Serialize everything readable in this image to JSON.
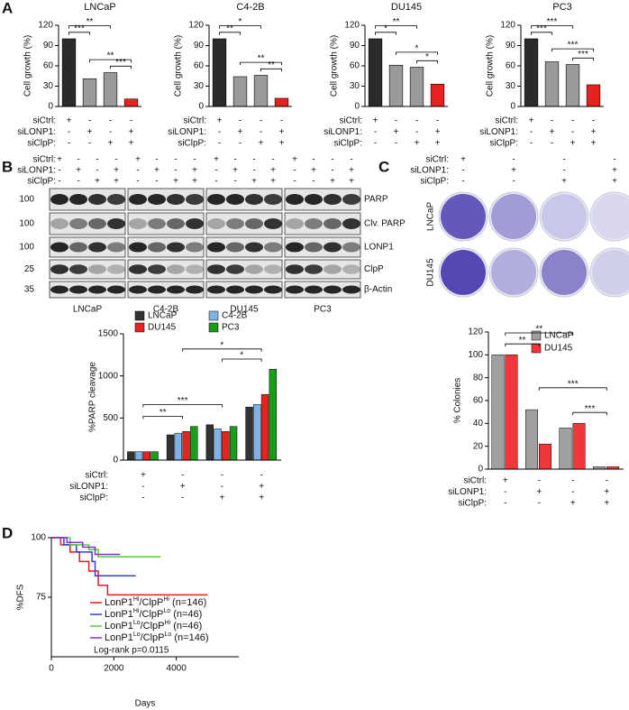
{
  "panels": [
    "A",
    "B",
    "C",
    "D"
  ],
  "chart_data": [
    {
      "type": "bar",
      "title": "LNCaP",
      "y_label": "Cell growth (%)",
      "values": [
        100,
        41,
        50,
        11
      ],
      "colors": [
        "#2b2b2b",
        "#9a9a9a",
        "#9a9a9a",
        "#e8231f"
      ],
      "ylim": [
        0,
        120
      ],
      "yticks": [
        0,
        30,
        60,
        90,
        120
      ],
      "conditions": [
        {
          "label": "siCtrl:",
          "signs": [
            "+",
            "-",
            "-",
            "-"
          ]
        },
        {
          "label": "siLONP1:",
          "signs": [
            "-",
            "+",
            "-",
            "+"
          ]
        },
        {
          "label": "siClpP:",
          "signs": [
            "-",
            "-",
            "+",
            "+"
          ]
        }
      ],
      "brackets": [
        {
          "label": "***",
          "bars": [
            0,
            1
          ]
        },
        {
          "label": "**",
          "bars": [
            0,
            2
          ]
        },
        {
          "label": "**",
          "bars": [
            1,
            3
          ]
        },
        {
          "label": "***",
          "bars": [
            2,
            3
          ]
        }
      ]
    },
    {
      "type": "bar",
      "title": "C4-2B",
      "y_label": "Cell growth (%)",
      "values": [
        100,
        44,
        46,
        12
      ],
      "colors": [
        "#2b2b2b",
        "#9a9a9a",
        "#9a9a9a",
        "#e8231f"
      ],
      "ylim": [
        0,
        120
      ],
      "yticks": [
        0,
        30,
        60,
        90,
        120
      ],
      "conditions": [
        {
          "label": "siCtrl:",
          "signs": [
            "+",
            "-",
            "-",
            "-"
          ]
        },
        {
          "label": "siLONP1:",
          "signs": [
            "-",
            "+",
            "-",
            "+"
          ]
        },
        {
          "label": "siClpP:",
          "signs": [
            "-",
            "-",
            "+",
            "+"
          ]
        }
      ],
      "brackets": [
        {
          "label": "**",
          "bars": [
            0,
            1
          ]
        },
        {
          "label": "*",
          "bars": [
            0,
            2
          ]
        },
        {
          "label": "**",
          "bars": [
            1,
            3
          ]
        },
        {
          "label": "**",
          "bars": [
            2,
            3
          ]
        }
      ]
    },
    {
      "type": "bar",
      "title": "DU145",
      "y_label": "Cell growth (%)",
      "values": [
        100,
        61,
        58,
        33
      ],
      "colors": [
        "#2b2b2b",
        "#9a9a9a",
        "#9a9a9a",
        "#e8231f"
      ],
      "ylim": [
        0,
        120
      ],
      "yticks": [
        0,
        30,
        60,
        90,
        120
      ],
      "conditions": [
        {
          "label": "siCtrl:",
          "signs": [
            "+",
            "-",
            "-",
            "-"
          ]
        },
        {
          "label": "siLONP1:",
          "signs": [
            "-",
            "+",
            "-",
            "+"
          ]
        },
        {
          "label": "siClpP:",
          "signs": [
            "-",
            "-",
            "+",
            "+"
          ]
        }
      ],
      "brackets": [
        {
          "label": "*",
          "bars": [
            0,
            1
          ]
        },
        {
          "label": "**",
          "bars": [
            0,
            2
          ]
        },
        {
          "label": "*",
          "bars": [
            1,
            3
          ]
        },
        {
          "label": "*",
          "bars": [
            2,
            3
          ]
        }
      ]
    },
    {
      "type": "bar",
      "title": "PC3",
      "y_label": "Cell growth (%)",
      "values": [
        100,
        66,
        62,
        32
      ],
      "colors": [
        "#2b2b2b",
        "#9a9a9a",
        "#9a9a9a",
        "#e8231f"
      ],
      "ylim": [
        0,
        120
      ],
      "yticks": [
        0,
        30,
        60,
        90,
        120
      ],
      "conditions": [
        {
          "label": "siCtrl:",
          "signs": [
            "+",
            "-",
            "-",
            "-"
          ]
        },
        {
          "label": "siLONP1:",
          "signs": [
            "-",
            "+",
            "-",
            "+"
          ]
        },
        {
          "label": "siClpP:",
          "signs": [
            "-",
            "-",
            "+",
            "+"
          ]
        }
      ],
      "brackets": [
        {
          "label": "***",
          "bars": [
            0,
            1
          ]
        },
        {
          "label": "***",
          "bars": [
            0,
            2
          ]
        },
        {
          "label": "***",
          "bars": [
            1,
            3
          ]
        },
        {
          "label": "***",
          "bars": [
            2,
            3
          ]
        }
      ]
    },
    {
      "type": "bar",
      "y_label": "%PARP cleavage",
      "series": [
        {
          "name": "LNCaP",
          "color": "#333333",
          "values": [
            100,
            300,
            420,
            630
          ]
        },
        {
          "name": "C4-2B",
          "color": "#7fb2e5",
          "values": [
            100,
            320,
            370,
            660
          ]
        },
        {
          "name": "DU145",
          "color": "#e8231f",
          "values": [
            100,
            340,
            340,
            780
          ]
        },
        {
          "name": "PC3",
          "color": "#1a9e1a",
          "values": [
            100,
            400,
            400,
            1080
          ]
        }
      ],
      "ylim": [
        0,
        1500
      ],
      "yticks": [
        0,
        500,
        1000,
        1500
      ],
      "conditions": [
        {
          "label": "siCtrl:",
          "signs": [
            "+",
            "-",
            "-",
            "-"
          ]
        },
        {
          "label": "siLONP1:",
          "signs": [
            "-",
            "+",
            "-",
            "+"
          ]
        },
        {
          "label": "siClpP:",
          "signs": [
            "-",
            "-",
            "+",
            "+"
          ]
        }
      ],
      "brackets": [
        {
          "label": "**",
          "bars": [
            0,
            1
          ]
        },
        {
          "label": "***",
          "bars": [
            0,
            2
          ]
        },
        {
          "label": "*",
          "bars": [
            1,
            3
          ]
        },
        {
          "label": "*",
          "bars": [
            2,
            3
          ]
        }
      ]
    },
    {
      "type": "bar",
      "y_label": "% Colonies",
      "series": [
        {
          "name": "LNCaP",
          "color": "#a0a0a0",
          "values": [
            100,
            52,
            36,
            2
          ]
        },
        {
          "name": "DU145",
          "color": "#f0383a",
          "values": [
            100,
            22,
            40,
            2
          ]
        }
      ],
      "ylim": [
        0,
        120
      ],
      "yticks": [
        0,
        20,
        40,
        60,
        80,
        100,
        120
      ],
      "conditions": [
        {
          "label": "siCtrl:",
          "signs": [
            "+",
            "-",
            "-",
            "-"
          ]
        },
        {
          "label": "siLONP1:",
          "signs": [
            "-",
            "+",
            "-",
            "+"
          ]
        },
        {
          "label": "siClpP:",
          "signs": [
            "-",
            "-",
            "+",
            "+"
          ]
        }
      ],
      "brackets": [
        {
          "label": "**",
          "bars": [
            0,
            1
          ]
        },
        {
          "label": "**",
          "bars": [
            0,
            2
          ]
        },
        {
          "label": "***",
          "bars": [
            1,
            3
          ]
        },
        {
          "label": "***",
          "bars": [
            2,
            3
          ]
        }
      ]
    },
    {
      "type": "line",
      "y_label": "%DFS",
      "x_label": "Days",
      "xlim": [
        0,
        6000
      ],
      "xticks": [
        0,
        2000,
        4000
      ],
      "ylim": [
        50,
        100
      ],
      "yticks": [
        75,
        100
      ],
      "series": [
        {
          "name": [
            "LonP1",
            "Hi",
            "/ClpP",
            "Hi",
            " (n=146)"
          ],
          "color": "#e41a1c",
          "x": [
            0,
            300,
            300,
            600,
            600,
            900,
            900,
            1200,
            1200,
            1500,
            1500,
            1800,
            1800,
            5000
          ],
          "values": [
            100,
            100,
            97,
            97,
            94,
            94,
            90,
            90,
            86,
            86,
            80,
            80,
            76,
            76
          ]
        },
        {
          "name": [
            "LonP1",
            "Hi",
            "/ClpP",
            "Lo",
            " (n=46)"
          ],
          "color": "#2b3ee0",
          "x": [
            0,
            400,
            400,
            800,
            800,
            1300,
            1300,
            1400,
            1400,
            2700
          ],
          "values": [
            100,
            100,
            97,
            97,
            94,
            94,
            90,
            90,
            84,
            84
          ]
        },
        {
          "name": [
            "LonP1",
            "Lo",
            "/ClpP",
            "Hi",
            " (n=46)"
          ],
          "color": "#55cc33",
          "x": [
            0,
            600,
            600,
            1200,
            1200,
            1500,
            1500,
            3500
          ],
          "values": [
            100,
            100,
            97,
            97,
            95,
            95,
            92,
            92
          ]
        },
        {
          "name": [
            "LonP1",
            "Lo",
            "/ClpP",
            "Lo",
            " (n=146)"
          ],
          "color": "#8a2be2",
          "x": [
            0,
            500,
            500,
            1000,
            1000,
            1400,
            1400,
            2200
          ],
          "values": [
            100,
            100,
            98,
            98,
            96,
            96,
            93,
            93
          ]
        }
      ],
      "annotation": "Log-rank p=0.0115"
    }
  ],
  "blot": {
    "conditions": [
      {
        "label": "siCtrl:",
        "signs": [
          "+",
          "-",
          "-",
          "-",
          "+",
          "-",
          "-",
          "-",
          "+",
          "-",
          "-",
          "-",
          "+",
          "-",
          "-",
          "-"
        ]
      },
      {
        "label": "siLONP1:",
        "signs": [
          "-",
          "+",
          "-",
          "+",
          "-",
          "+",
          "-",
          "+",
          "-",
          "+",
          "-",
          "+",
          "-",
          "+",
          "-",
          "+"
        ]
      },
      {
        "label": "siClpP:",
        "signs": [
          "-",
          "-",
          "+",
          "+",
          "-",
          "-",
          "+",
          "+",
          "-",
          "-",
          "+",
          "+",
          "-",
          "-",
          "+",
          "+"
        ]
      }
    ],
    "markers": [
      100,
      100,
      100,
      25,
      35
    ],
    "proteins": [
      "PARP",
      "Clv. PARP",
      "LONP1",
      "ClpP",
      "β-Actin"
    ],
    "cell_lines": [
      "LNCaP",
      "C4-2B",
      "DU145",
      "PC3"
    ]
  },
  "colony": {
    "conditions": [
      {
        "label": "siCtrl:",
        "signs": [
          "+",
          "-",
          "-",
          "-"
        ]
      },
      {
        "label": "siLONP1:",
        "signs": [
          "-",
          "+",
          "-",
          "+"
        ]
      },
      {
        "label": "siClpP:",
        "signs": [
          "-",
          "-",
          "+",
          "+"
        ]
      }
    ],
    "cell_lines": [
      "LNCaP",
      "DU145"
    ]
  }
}
